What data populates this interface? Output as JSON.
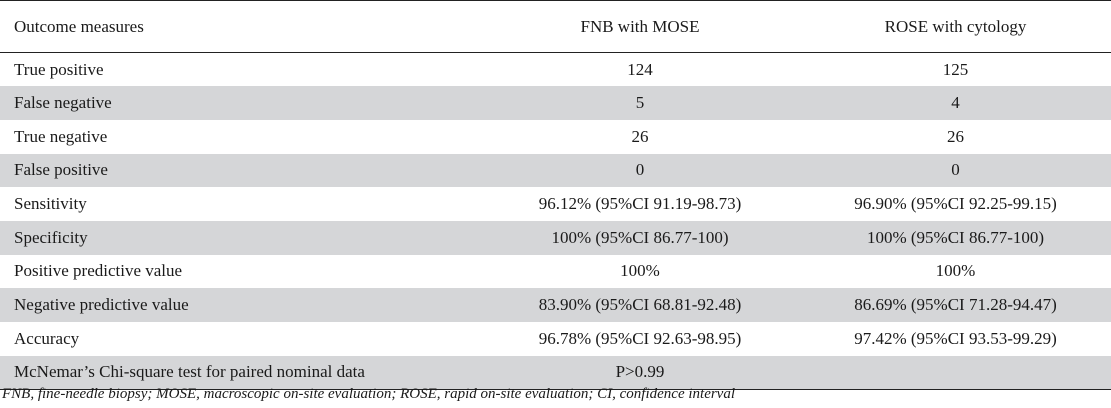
{
  "table": {
    "headers": [
      "Outcome measures",
      "FNB with MOSE",
      "ROSE with cytology"
    ],
    "rows": [
      [
        "True positive",
        "124",
        "125"
      ],
      [
        "False negative",
        "5",
        "4"
      ],
      [
        "True negative",
        "26",
        "26"
      ],
      [
        "False positive",
        "0",
        "0"
      ],
      [
        "Sensitivity",
        "96.12% (95%CI 91.19-98.73)",
        "96.90% (95%CI 92.25-99.15)"
      ],
      [
        "Specificity",
        "100% (95%CI 86.77-100)",
        "100% (95%CI 86.77-100)"
      ],
      [
        "Positive predictive value",
        "100%",
        "100%"
      ],
      [
        "Negative predictive value",
        "83.90% (95%CI 68.81-92.48)",
        "86.69% (95%CI 71.28-94.47)"
      ],
      [
        "Accuracy",
        "96.78% (95%CI 92.63-98.95)",
        "97.42% (95%CI 93.53-99.29)"
      ],
      [
        "McNemar’s Chi-square test for paired nominal data",
        "P>0.99",
        ""
      ]
    ],
    "shaded_row_color": "#d5d6d8"
  },
  "footnote": "FNB, fine-needle biopsy; MOSE, macroscopic on-site evaluation; ROSE, rapid on-site evaluation; CI, confidence interval"
}
